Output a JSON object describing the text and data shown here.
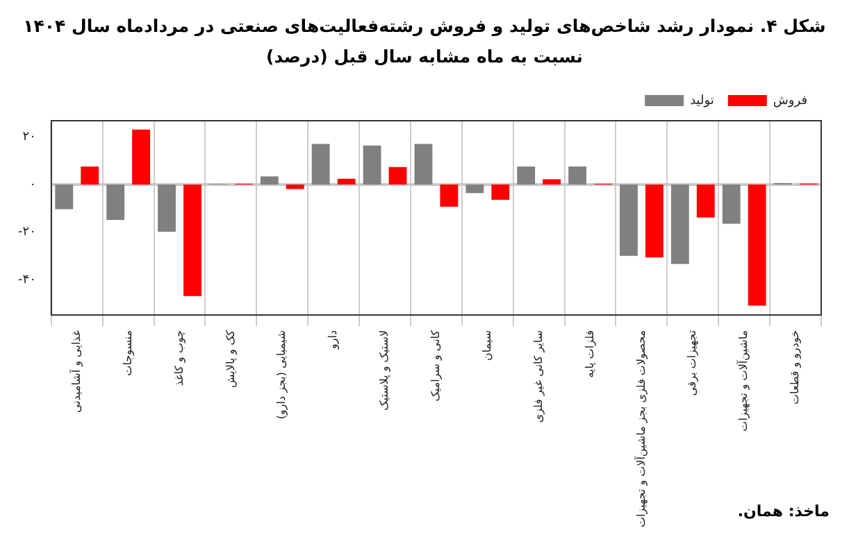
{
  "chart_data": {
    "type": "bar",
    "title": "شکل ۴. نمودار رشد شاخص‌های تولید و فروش رشته‌فعالیت‌های صنعتی در مردادماه سال ۱۴۰۴",
    "subtitle": "نسبت به ماه مشابه سال قبل (درصد)",
    "categories": [
      "غذایی و آشامیدنی",
      "منسوجات",
      "چوب و کاغذ",
      "کک و پالایش",
      "شیمیایی (بجز دارو)",
      "دارو",
      "لاستیک و پلاستیک",
      "کانی و سرامیک",
      "سیمان",
      "سایر کانی غیر فلزی",
      "فلزات پایه",
      "محصولات فلزی بجز ماشین‌آلات و تجهیزات",
      "تجهیزات برقی",
      "ماشین‌آلات و تجهیزات",
      "خودرو و قطعات"
    ],
    "series": [
      {
        "name": "تولید",
        "color": "#808080",
        "values": [
          -10.3,
          -14.8,
          -19.8,
          0.2,
          3.4,
          17,
          16.3,
          17,
          -3.6,
          7.5,
          7.5,
          -29.9,
          -33.3,
          -16.4,
          0.6
        ]
      },
      {
        "name": "فروش",
        "color": "#ff0000",
        "values": [
          7.5,
          23,
          -46.7,
          0.3,
          -1.9,
          2.4,
          7.3,
          -9.3,
          -6.4,
          2.2,
          0.3,
          -30.5,
          -13.8,
          -50.7,
          0.4
        ]
      }
    ],
    "ylim": [
      -54.6,
      26.7
    ],
    "yticks": [
      {
        "value": -40,
        "label": "-۴۰"
      },
      {
        "value": -20,
        "label": "-۲۰"
      },
      {
        "value": 0,
        "label": "۰"
      },
      {
        "value": 20,
        "label": "۲۰"
      }
    ],
    "grid": "x",
    "legend": "top right",
    "ref_lines": [
      {
        "axis": "y",
        "value": 0,
        "color": "#c8c8c8"
      }
    ],
    "annotations": [
      "ماخذ: همان."
    ]
  }
}
